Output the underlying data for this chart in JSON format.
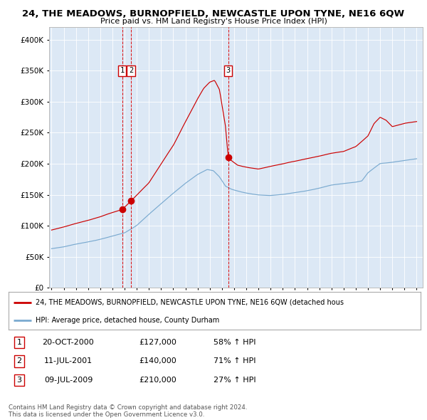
{
  "title": "24, THE MEADOWS, BURNOPFIELD, NEWCASTLE UPON TYNE, NE16 6QW",
  "subtitle": "Price paid vs. HM Land Registry's House Price Index (HPI)",
  "hpi_color": "#7aaad0",
  "price_color": "#cc0000",
  "bg_color": "#dce8f5",
  "sale_points": [
    {
      "label": "1",
      "date_num": 2000.8,
      "price": 127000
    },
    {
      "label": "2",
      "date_num": 2001.53,
      "price": 140000
    },
    {
      "label": "3",
      "date_num": 2009.52,
      "price": 210000
    }
  ],
  "vline_dates": [
    2000.8,
    2001.53,
    2009.52
  ],
  "legend_price_label": "24, THE MEADOWS, BURNOPFIELD, NEWCASTLE UPON TYNE, NE16 6QW (detached hous",
  "legend_hpi_label": "HPI: Average price, detached house, County Durham",
  "table_data": [
    [
      "1",
      "20-OCT-2000",
      "£127,000",
      "58% ↑ HPI"
    ],
    [
      "2",
      "11-JUL-2001",
      "£140,000",
      "71% ↑ HPI"
    ],
    [
      "3",
      "09-JUL-2009",
      "£210,000",
      "27% ↑ HPI"
    ]
  ],
  "footer": "Contains HM Land Registry data © Crown copyright and database right 2024.\nThis data is licensed under the Open Government Licence v3.0.",
  "ylim": [
    0,
    420000
  ],
  "yticks": [
    0,
    50000,
    100000,
    150000,
    200000,
    250000,
    300000,
    350000,
    400000
  ],
  "xlim_start": 1994.8,
  "xlim_end": 2025.5,
  "hpi_anchors_x": [
    1995.0,
    1996.0,
    1997.0,
    1998.0,
    1999.0,
    2000.0,
    2001.0,
    2002.0,
    2003.0,
    2004.0,
    2005.0,
    2006.0,
    2007.0,
    2007.8,
    2008.3,
    2008.8,
    2009.3,
    2009.8,
    2010.3,
    2011.0,
    2012.0,
    2013.0,
    2014.0,
    2015.0,
    2016.0,
    2017.0,
    2018.0,
    2019.0,
    2020.0,
    2020.5,
    2021.0,
    2022.0,
    2023.0,
    2024.0,
    2025.0
  ],
  "hpi_anchors_y": [
    63000,
    66000,
    70000,
    74000,
    78000,
    83000,
    88000,
    100000,
    118000,
    135000,
    152000,
    168000,
    182000,
    190000,
    188000,
    178000,
    163000,
    158000,
    155000,
    152000,
    149000,
    148000,
    150000,
    153000,
    156000,
    160000,
    165000,
    168000,
    170000,
    172000,
    185000,
    200000,
    202000,
    205000,
    208000
  ],
  "price_anchors_x": [
    1995.0,
    1996.0,
    1997.0,
    1998.0,
    1999.0,
    2000.0,
    2000.8,
    2001.5,
    2002.0,
    2003.0,
    2004.0,
    2005.0,
    2006.0,
    2007.0,
    2007.5,
    2008.0,
    2008.4,
    2008.8,
    2009.3,
    2009.52,
    2009.8,
    2010.3,
    2011.0,
    2012.0,
    2013.0,
    2014.0,
    2015.0,
    2016.0,
    2017.0,
    2018.0,
    2019.0,
    2020.0,
    2021.0,
    2021.5,
    2022.0,
    2022.5,
    2023.0,
    2024.0,
    2025.0
  ],
  "price_anchors_y": [
    93000,
    98000,
    104000,
    109000,
    115000,
    122000,
    127000,
    140000,
    150000,
    170000,
    200000,
    230000,
    268000,
    305000,
    322000,
    332000,
    335000,
    320000,
    260000,
    210000,
    205000,
    198000,
    195000,
    192000,
    196000,
    200000,
    204000,
    208000,
    212000,
    217000,
    220000,
    228000,
    245000,
    265000,
    275000,
    270000,
    260000,
    265000,
    268000
  ]
}
